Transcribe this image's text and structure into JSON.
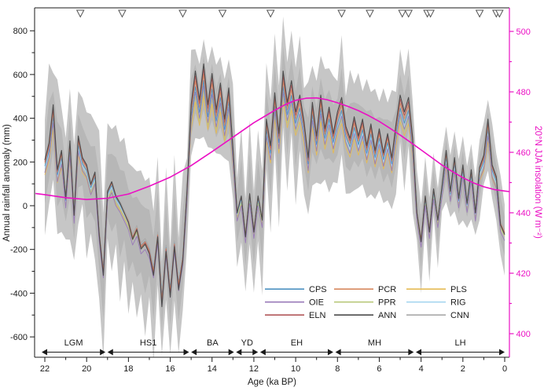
{
  "figure": {
    "background": "#ffffff",
    "frame_color": "#1a1a1a"
  },
  "axes": {
    "x": {
      "label": "Age (ka BP)",
      "major": [
        22,
        20,
        18,
        16,
        14,
        12,
        10,
        8,
        6,
        4,
        2,
        0
      ],
      "minor": [
        21,
        19,
        17,
        15,
        13,
        11,
        9,
        7,
        5,
        3,
        1
      ]
    },
    "left": {
      "label": "Annual rainfall anomaly (mm)",
      "major": [
        800,
        600,
        400,
        200,
        0,
        -200,
        -400,
        -600
      ],
      "minor": [
        700,
        500,
        300,
        100,
        -100,
        -300,
        -500
      ]
    },
    "right": {
      "label": "20°N JJA insolation (W m⁻²)",
      "major": [
        500,
        480,
        460,
        440,
        420,
        400
      ],
      "minor": [
        490,
        470,
        450,
        430,
        410
      ],
      "color": "#eb10c4"
    }
  },
  "legend": {
    "columns": [
      [
        "CPS",
        "OIE",
        "ELN"
      ],
      [
        "PCR",
        "PPR",
        "ANN"
      ],
      [
        "PLS",
        "RIG",
        "CNN"
      ]
    ]
  },
  "chart_data": {
    "type": "line",
    "title": "",
    "xlabel": "Age (ka BP)",
    "ylabel_left": "Annual rainfall anomaly (mm)",
    "ylabel_right": "20°N JJA insolation (W m⁻²)",
    "x_range": [
      22.5,
      -0.25
    ],
    "y_left_range": [
      -700,
      900
    ],
    "y_right_range": [
      400,
      505
    ],
    "grid": false,
    "age_start": 22.0,
    "age_step": 0.2,
    "ensemble_mean": [
      190,
      260,
      420,
      150,
      230,
      30,
      270,
      -40,
      290,
      200,
      170,
      90,
      140,
      -120,
      -290,
      60,
      100,
      40,
      10,
      -30,
      -70,
      -140,
      -100,
      -180,
      -160,
      -200,
      -290,
      -130,
      -420,
      -190,
      -380,
      -170,
      -350,
      -230,
      60,
      420,
      560,
      440,
      590,
      420,
      550,
      400,
      510,
      360,
      490,
      240,
      -30,
      40,
      -130,
      50,
      -110,
      40,
      -60,
      360,
      250,
      470,
      300,
      560,
      430,
      520,
      390,
      460,
      350,
      200,
      430,
      290,
      460,
      320,
      410,
      300,
      390,
      450,
      330,
      280,
      370,
      290,
      360,
      250,
      340,
      230,
      320,
      220,
      300,
      200,
      340,
      460,
      390,
      450,
      280,
      -30,
      -150,
      40,
      -110,
      70,
      -60,
      80,
      230,
      60,
      200,
      30,
      170,
      10,
      150,
      -30,
      160,
      210,
      360,
      170,
      120,
      -80,
      -120
    ],
    "envelope_halfwidth": [
      260,
      320,
      240,
      350,
      280,
      230,
      340,
      260,
      300,
      240,
      330,
      270,
      310,
      380,
      330,
      260,
      320,
      270,
      360,
      280,
      340,
      260,
      330,
      280,
      350,
      270,
      340,
      290,
      210,
      300,
      240,
      330,
      260,
      310,
      200,
      240,
      200,
      170,
      220,
      190,
      230,
      200,
      220,
      180,
      230,
      260,
      200,
      260,
      210,
      280,
      230,
      250,
      280,
      240,
      300,
      260,
      320,
      250,
      290,
      230,
      310,
      260,
      240,
      300,
      270,
      230,
      290,
      250,
      280,
      240,
      230,
      270,
      220,
      280,
      240,
      260,
      210,
      270,
      230,
      250,
      200,
      260,
      220,
      270,
      230,
      210,
      260,
      220,
      250,
      160,
      200,
      150,
      190,
      140,
      180,
      130,
      170,
      140,
      180,
      150,
      190,
      140,
      170,
      130,
      180,
      140,
      160,
      170,
      150,
      180,
      160
    ],
    "envelope_color": "#c6c6c6",
    "envelope_inner_color": "#b3b3b3",
    "series": [
      {
        "name": "CNN",
        "color": "#a9a9a9",
        "scale": 1.0,
        "offset": 10,
        "width": 0.9
      },
      {
        "name": "PLS",
        "color": "#e5bb55",
        "scale": 0.9,
        "offset": -30,
        "width": 0.9
      },
      {
        "name": "PPR",
        "color": "#b9c87b",
        "scale": 0.94,
        "offset": -25,
        "width": 0.9
      },
      {
        "name": "RIG",
        "color": "#a6d6ef",
        "scale": 0.95,
        "offset": -10,
        "width": 0.9
      },
      {
        "name": "OIE",
        "color": "#9a7ab8",
        "scale": 1.0,
        "offset": -40,
        "width": 0.9
      },
      {
        "name": "CPS",
        "color": "#4d92c1",
        "scale": 0.98,
        "offset": -5,
        "width": 0.9
      },
      {
        "name": "PCR",
        "color": "#d6895f",
        "scale": 1.02,
        "offset": 0,
        "width": 0.9
      },
      {
        "name": "ELN",
        "color": "#b2585a",
        "scale": 1.06,
        "offset": 0,
        "width": 0.9
      },
      {
        "name": "ANN",
        "color": "#4c4c4c",
        "scale": 1.1,
        "offset": 0,
        "width": 1.1
      }
    ],
    "insolation": {
      "name": "20N JJA insolation",
      "color": "#eb10c4",
      "points": [
        [
          22.45,
          446.4
        ],
        [
          22,
          446
        ],
        [
          21,
          445
        ],
        [
          20,
          444.4
        ],
        [
          19,
          444.8
        ],
        [
          18,
          446.2
        ],
        [
          17,
          448.8
        ],
        [
          16,
          451.8
        ],
        [
          15,
          455.6
        ],
        [
          14,
          460.2
        ],
        [
          13,
          465.0
        ],
        [
          12,
          469.8
        ],
        [
          11,
          473.9
        ],
        [
          10.5,
          475.8
        ],
        [
          10,
          477.2
        ],
        [
          9.5,
          477.9
        ],
        [
          9,
          478.0
        ],
        [
          8.5,
          477.4
        ],
        [
          8,
          476.4
        ],
        [
          7.5,
          475.2
        ],
        [
          7,
          473.8
        ],
        [
          6.5,
          472.1
        ],
        [
          6,
          470.2
        ],
        [
          5.5,
          468.0
        ],
        [
          5,
          465.7
        ],
        [
          4.5,
          463.3
        ],
        [
          4,
          460.8
        ],
        [
          3.5,
          458.3
        ],
        [
          3,
          455.8
        ],
        [
          2.5,
          453.6
        ],
        [
          2,
          451.6
        ],
        [
          1.5,
          449.9
        ],
        [
          1,
          448.6
        ],
        [
          0.5,
          447.7
        ],
        [
          0,
          447.2
        ],
        [
          -0.22,
          447.0
        ]
      ]
    },
    "markers_ka": [
      20.3,
      18.3,
      15.4,
      13.5,
      11.2,
      7.8,
      6.45,
      4.9,
      4.6,
      3.7,
      3.55,
      1.2,
      0.4,
      0.25
    ],
    "periods": [
      {
        "label": "LGM",
        "from": 22.15,
        "to": 19.1
      },
      {
        "label": "HS1",
        "from": 19.0,
        "to": 15.1
      },
      {
        "label": "BA",
        "from": 15.0,
        "to": 12.95
      },
      {
        "label": "YD",
        "from": 12.85,
        "to": 11.8
      },
      {
        "label": "EH",
        "from": 11.7,
        "to": 8.2
      },
      {
        "label": "MH",
        "from": 8.1,
        "to": 4.35
      },
      {
        "label": "LH",
        "from": 4.25,
        "to": 0.0
      }
    ]
  }
}
